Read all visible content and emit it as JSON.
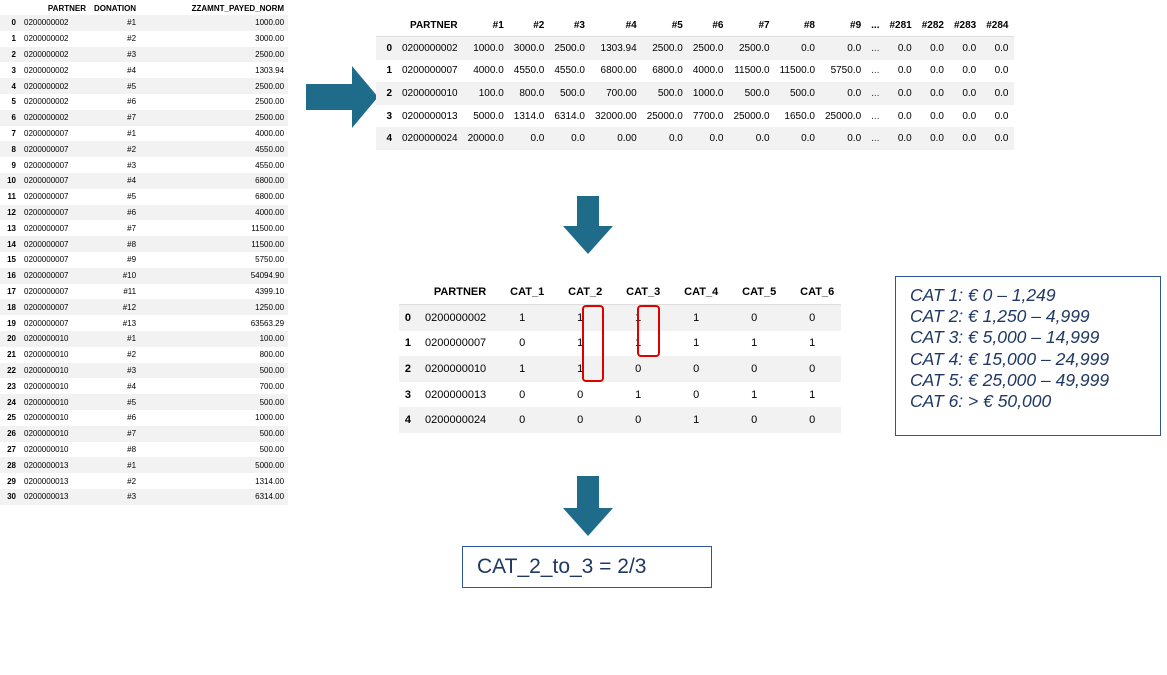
{
  "left_table": {
    "columns": [
      "",
      "PARTNER",
      "DONATION",
      "ZZAMNT_PAYED_NORM"
    ],
    "rows": [
      [
        "0",
        "0200000002",
        "#1",
        "1000.00"
      ],
      [
        "1",
        "0200000002",
        "#2",
        "3000.00"
      ],
      [
        "2",
        "0200000002",
        "#3",
        "2500.00"
      ],
      [
        "3",
        "0200000002",
        "#4",
        "1303.94"
      ],
      [
        "4",
        "0200000002",
        "#5",
        "2500.00"
      ],
      [
        "5",
        "0200000002",
        "#6",
        "2500.00"
      ],
      [
        "6",
        "0200000002",
        "#7",
        "2500.00"
      ],
      [
        "7",
        "0200000007",
        "#1",
        "4000.00"
      ],
      [
        "8",
        "0200000007",
        "#2",
        "4550.00"
      ],
      [
        "9",
        "0200000007",
        "#3",
        "4550.00"
      ],
      [
        "10",
        "0200000007",
        "#4",
        "6800.00"
      ],
      [
        "11",
        "0200000007",
        "#5",
        "6800.00"
      ],
      [
        "12",
        "0200000007",
        "#6",
        "4000.00"
      ],
      [
        "13",
        "0200000007",
        "#7",
        "11500.00"
      ],
      [
        "14",
        "0200000007",
        "#8",
        "11500.00"
      ],
      [
        "15",
        "0200000007",
        "#9",
        "5750.00"
      ],
      [
        "16",
        "0200000007",
        "#10",
        "54094.90"
      ],
      [
        "17",
        "0200000007",
        "#11",
        "4399.10"
      ],
      [
        "18",
        "0200000007",
        "#12",
        "1250.00"
      ],
      [
        "19",
        "0200000007",
        "#13",
        "63563.29"
      ],
      [
        "20",
        "0200000010",
        "#1",
        "100.00"
      ],
      [
        "21",
        "0200000010",
        "#2",
        "800.00"
      ],
      [
        "22",
        "0200000010",
        "#3",
        "500.00"
      ],
      [
        "23",
        "0200000010",
        "#4",
        "700.00"
      ],
      [
        "24",
        "0200000010",
        "#5",
        "500.00"
      ],
      [
        "25",
        "0200000010",
        "#6",
        "1000.00"
      ],
      [
        "26",
        "0200000010",
        "#7",
        "500.00"
      ],
      [
        "27",
        "0200000010",
        "#8",
        "500.00"
      ],
      [
        "28",
        "0200000013",
        "#1",
        "5000.00"
      ],
      [
        "29",
        "0200000013",
        "#2",
        "1314.00"
      ],
      [
        "30",
        "0200000013",
        "#3",
        "6314.00"
      ]
    ]
  },
  "wide_table": {
    "columns": [
      "",
      "PARTNER",
      "#1",
      "#2",
      "#3",
      "#4",
      "#5",
      "#6",
      "#7",
      "#8",
      "#9",
      "...",
      "#281",
      "#282",
      "#283",
      "#284"
    ],
    "rows": [
      [
        "0",
        "0200000002",
        "1000.0",
        "3000.0",
        "2500.0",
        "1303.94",
        "2500.0",
        "2500.0",
        "2500.0",
        "0.0",
        "0.0",
        "...",
        "0.0",
        "0.0",
        "0.0",
        "0.0"
      ],
      [
        "1",
        "0200000007",
        "4000.0",
        "4550.0",
        "4550.0",
        "6800.00",
        "6800.0",
        "4000.0",
        "11500.0",
        "11500.0",
        "5750.0",
        "...",
        "0.0",
        "0.0",
        "0.0",
        "0.0"
      ],
      [
        "2",
        "0200000010",
        "100.0",
        "800.0",
        "500.0",
        "700.00",
        "500.0",
        "1000.0",
        "500.0",
        "500.0",
        "0.0",
        "...",
        "0.0",
        "0.0",
        "0.0",
        "0.0"
      ],
      [
        "3",
        "0200000013",
        "5000.0",
        "1314.0",
        "6314.0",
        "32000.00",
        "25000.0",
        "7700.0",
        "25000.0",
        "1650.0",
        "25000.0",
        "...",
        "0.0",
        "0.0",
        "0.0",
        "0.0"
      ],
      [
        "4",
        "0200000024",
        "20000.0",
        "0.0",
        "0.0",
        "0.00",
        "0.0",
        "0.0",
        "0.0",
        "0.0",
        "0.0",
        "...",
        "0.0",
        "0.0",
        "0.0",
        "0.0"
      ]
    ]
  },
  "cat_table": {
    "columns": [
      "",
      "PARTNER",
      "CAT_1",
      "CAT_2",
      "CAT_3",
      "CAT_4",
      "CAT_5",
      "CAT_6"
    ],
    "rows": [
      [
        "0",
        "0200000002",
        "1",
        "1",
        "1",
        "1",
        "0",
        "0"
      ],
      [
        "1",
        "0200000007",
        "0",
        "1",
        "1",
        "1",
        "1",
        "1"
      ],
      [
        "2",
        "0200000010",
        "1",
        "1",
        "0",
        "0",
        "0",
        "0"
      ],
      [
        "3",
        "0200000013",
        "0",
        "0",
        "1",
        "0",
        "1",
        "1"
      ],
      [
        "4",
        "0200000024",
        "0",
        "0",
        "0",
        "1",
        "0",
        "0"
      ]
    ]
  },
  "legend": {
    "lines": [
      "CAT 1: € 0 – 1,249",
      "CAT 2: € 1,250 – 4,999",
      "CAT 3: € 5,000 – 14,999",
      "CAT 4: € 15,000 – 24,999",
      "CAT 5: € 25,000 – 49,999",
      "CAT 6: > € 50,000"
    ]
  },
  "result": {
    "text": "CAT_2_to_3 = 2/3"
  },
  "colors": {
    "arrow": "#1f6b8a",
    "highlight": "#e00000",
    "box_border": "#2f5597",
    "box_text": "#1f3864",
    "stripe": "#f2f2f2"
  }
}
